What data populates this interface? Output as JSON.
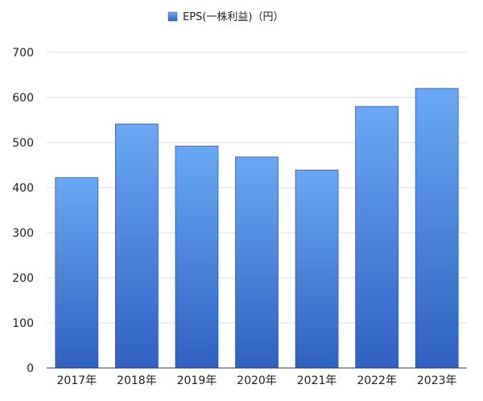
{
  "chart_data": {
    "type": "bar",
    "categories": [
      "2017年",
      "2018年",
      "2019年",
      "2020年",
      "2021年",
      "2022年",
      "2023年"
    ],
    "series": [
      {
        "name": "EPS(一株利益)（円）",
        "values": [
          422,
          541,
          492,
          468,
          439,
          580,
          620
        ]
      }
    ],
    "title": "",
    "xlabel": "",
    "ylabel": "",
    "ylim": [
      0,
      700
    ],
    "yticks": [
      0,
      100,
      200,
      300,
      400,
      500,
      600,
      700
    ],
    "grid": true,
    "legend_position": "top-center",
    "colors": {
      "bar_top": "#6aa8f5",
      "bar_bottom": "#2f61c0",
      "bar_stroke": "#2a58ad",
      "grid": "#dddddd",
      "axis": "#333333"
    }
  }
}
